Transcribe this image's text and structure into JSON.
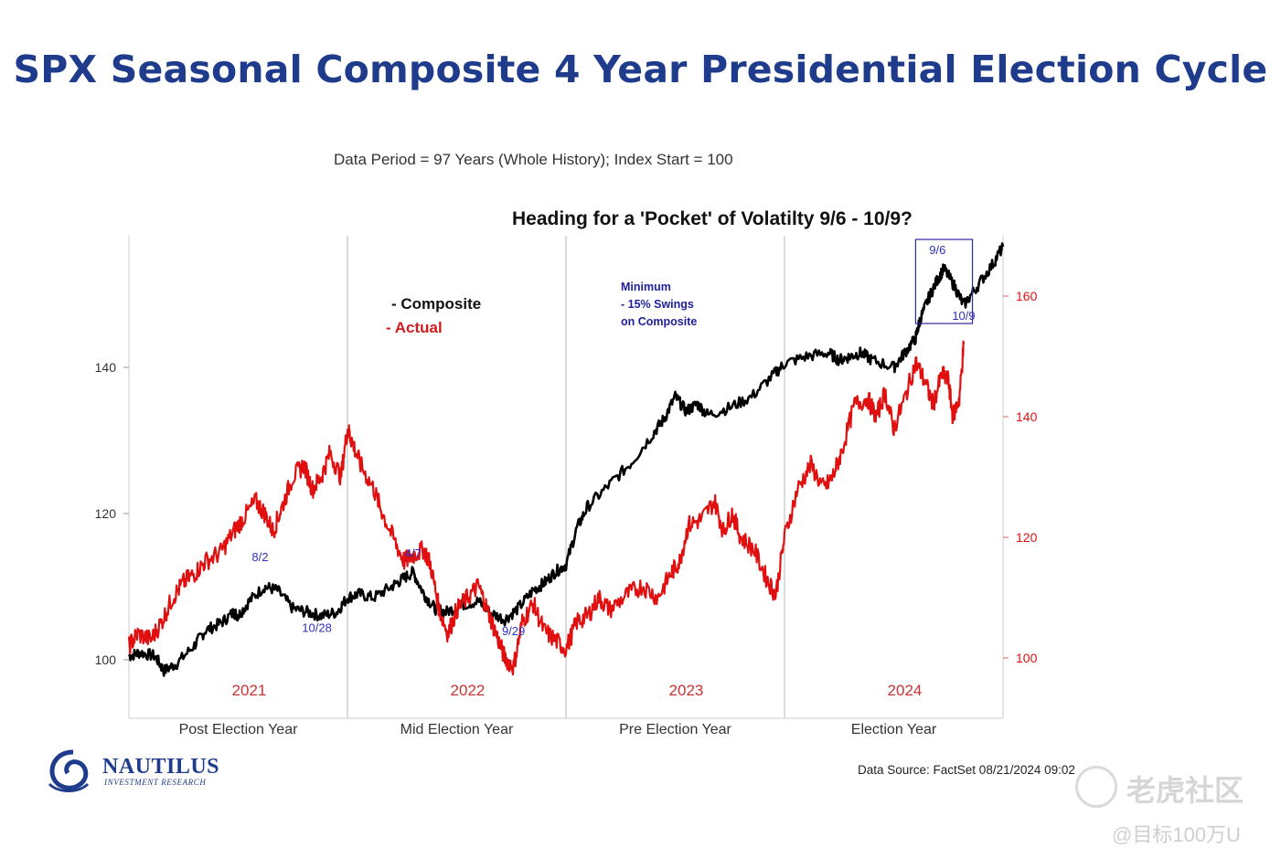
{
  "title": "SPX Seasonal Composite 4 Year Presidential Election Cycle",
  "subtitle": "Data Period = 97 Years (Whole History); Index Start = 100",
  "heading": "Heading for  a 'Pocket' of Volatilty 9/6 - 10/9?",
  "legend": {
    "composite": "- Composite",
    "actual": "-  Actual"
  },
  "note": {
    "line1": "Minimum",
    "line2": "- 15% Swings",
    "line3": "on Composite"
  },
  "source": "Data Source: FactSet      08/21/2024 09:02",
  "logo": {
    "name": "NAUTILUS",
    "sub": "INVESTMENT RESEARCH"
  },
  "watermark": {
    "brand": "老虎社区",
    "user": "@目标100万U"
  },
  "colors": {
    "composite": "#000000",
    "actual": "#e01010",
    "annotation": "#3030c0",
    "year_label": "#c83232",
    "title": "#1f3c8c"
  },
  "chart_data": {
    "type": "line",
    "title": "SPX Seasonal Composite 4 Year Presidential Election Cycle",
    "x_domain": [
      0,
      4
    ],
    "left_axis": {
      "ticks": [
        100,
        120,
        140
      ],
      "range": [
        92,
        158
      ]
    },
    "right_axis": {
      "ticks": [
        100,
        120,
        140,
        160
      ],
      "range": [
        90,
        170
      ]
    },
    "phases": [
      "Post Election Year",
      "Mid Election Year",
      "Pre Election Year",
      "Election Year"
    ],
    "years": [
      "2021",
      "2022",
      "2023",
      "2024"
    ],
    "series": [
      {
        "name": "Composite",
        "axis": "left",
        "x": [
          0,
          0.05,
          0.12,
          0.16,
          0.22,
          0.3,
          0.35,
          0.42,
          0.48,
          0.5,
          0.55,
          0.62,
          0.68,
          0.75,
          0.82,
          0.88,
          0.95,
          1.0,
          1.05,
          1.12,
          1.2,
          1.25,
          1.3,
          1.35,
          1.4,
          1.45,
          1.52,
          1.6,
          1.65,
          1.72,
          1.78,
          1.85,
          1.9,
          1.95,
          2.0,
          2.05,
          2.1,
          2.2,
          2.3,
          2.4,
          2.45,
          2.5,
          2.55,
          2.6,
          2.65,
          2.75,
          2.85,
          2.95,
          3.0,
          3.1,
          3.2,
          3.25,
          3.3,
          3.35,
          3.4,
          3.5,
          3.55,
          3.6,
          3.62,
          3.66,
          3.7,
          3.73,
          3.78,
          3.82,
          3.88,
          3.95,
          4.0
        ],
        "values": [
          100.5,
          101,
          100.5,
          98.5,
          99.5,
          102,
          104,
          105,
          106.5,
          106,
          108,
          110,
          109.5,
          107,
          106.5,
          106,
          106.5,
          108.5,
          109,
          108.5,
          110,
          111,
          112,
          109,
          107,
          106.5,
          107.5,
          108,
          106.5,
          105.5,
          107,
          109.5,
          110.5,
          112,
          113,
          118,
          121,
          124,
          127,
          131,
          133,
          136,
          134,
          135,
          133.5,
          134.5,
          136,
          139,
          140.5,
          141.5,
          142,
          141,
          141.5,
          142,
          141,
          140,
          142,
          144,
          146.5,
          149.5,
          152,
          153.5,
          151,
          148.5,
          151,
          154,
          156.5
        ]
      },
      {
        "name": "Actual",
        "axis": "right",
        "x": [
          0,
          0.04,
          0.1,
          0.15,
          0.2,
          0.25,
          0.3,
          0.35,
          0.42,
          0.48,
          0.52,
          0.58,
          0.62,
          0.66,
          0.7,
          0.75,
          0.8,
          0.84,
          0.88,
          0.92,
          0.97,
          1.0,
          1.02,
          1.06,
          1.12,
          1.16,
          1.22,
          1.26,
          1.3,
          1.35,
          1.38,
          1.42,
          1.46,
          1.5,
          1.55,
          1.6,
          1.64,
          1.68,
          1.72,
          1.76,
          1.8,
          1.85,
          1.9,
          1.95,
          2.0,
          2.05,
          2.1,
          2.15,
          2.2,
          2.28,
          2.35,
          2.42,
          2.48,
          2.52,
          2.56,
          2.62,
          2.68,
          2.72,
          2.76,
          2.8,
          2.86,
          2.92,
          2.96,
          3.0,
          3.06,
          3.12,
          3.18,
          3.22,
          3.26,
          3.32,
          3.38,
          3.42,
          3.46,
          3.5,
          3.55,
          3.6,
          3.64,
          3.68,
          3.72,
          3.75,
          3.77,
          3.8,
          3.82
        ],
        "values": [
          102,
          104,
          103,
          106,
          110,
          112.5,
          114,
          116,
          117.5,
          121,
          123,
          126,
          124,
          121,
          125,
          130,
          132,
          128,
          130,
          134,
          130,
          138,
          136,
          132,
          128,
          124,
          119,
          116,
          117,
          118,
          115.5,
          108,
          104,
          108,
          110,
          112,
          108,
          104,
          100,
          98.5,
          106,
          109,
          104.5,
          103,
          101.5,
          106,
          107,
          110,
          108,
          110.5,
          112,
          110,
          114,
          116,
          122,
          123,
          126,
          121,
          124,
          120,
          118,
          113,
          110.5,
          120,
          128,
          132,
          128,
          130,
          134,
          142,
          143,
          140,
          144,
          138,
          143,
          149,
          146,
          142,
          147,
          146,
          140,
          143,
          152
        ]
      }
    ],
    "annotations": [
      {
        "text": "8/2",
        "x": 0.6,
        "y": 113.5
      },
      {
        "text": "10/28",
        "x": 0.86,
        "y": 103.8
      },
      {
        "text": "4/7",
        "x": 1.3,
        "y": 114
      },
      {
        "text": "9/29",
        "x": 1.76,
        "y": 103.4
      },
      {
        "text": "9/6",
        "x": 3.7,
        "y": 155.5
      },
      {
        "text": "10/9",
        "x": 3.82,
        "y": 146.5
      }
    ],
    "highlight_box": {
      "label": "Pocket of Volatility",
      "x_range": [
        3.6,
        3.86
      ],
      "y_range": [
        146,
        157.5
      ]
    }
  }
}
